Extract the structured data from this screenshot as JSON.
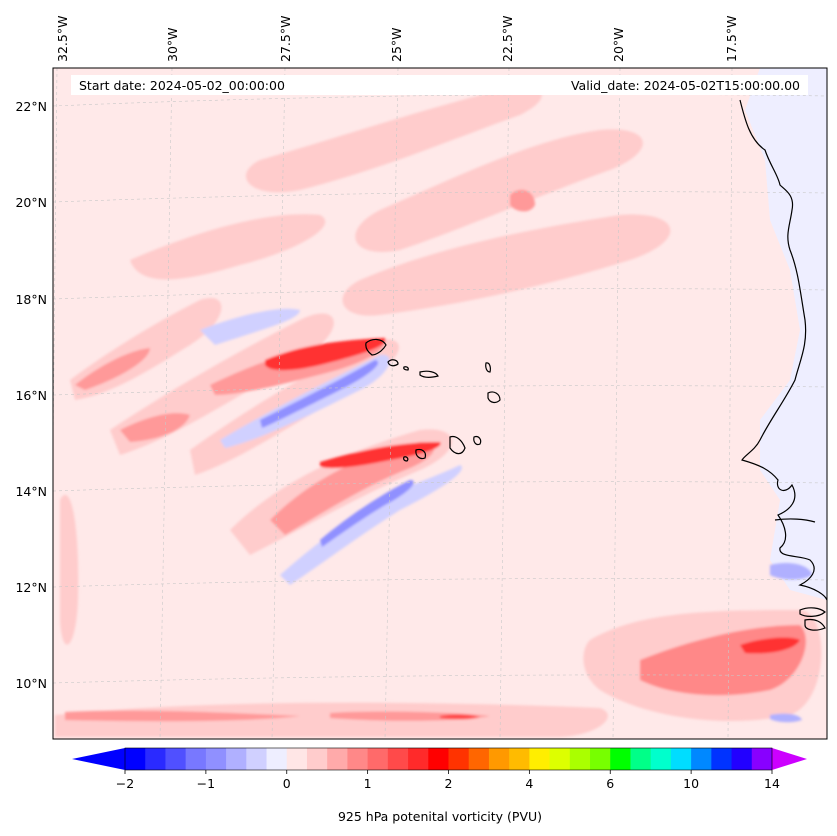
{
  "header": {
    "start_date": "Start date: 2024-05-02_00:00:00",
    "valid_date": "Valid_date: 2024-05-02T15:00:00.00"
  },
  "longitude_labels": [
    "32.5°W",
    "30°W",
    "27.5°W",
    "25°W",
    "22.5°W",
    "20°W",
    "17.5°W"
  ],
  "latitude_labels": [
    "22°N",
    "20°N",
    "18°N",
    "16°N",
    "14°N",
    "12°N",
    "10°N"
  ],
  "colorbar": {
    "title": "925 hPa potenital vorticity (PVU)",
    "tick_labels": [
      "−2",
      "−1",
      "0",
      "1",
      "2",
      "4",
      "6",
      "10",
      "14"
    ],
    "colors": [
      "#0000ff",
      "#2a2aff",
      "#5050ff",
      "#7878ff",
      "#9090ff",
      "#b0b0ff",
      "#d0d0ff",
      "#eeeeff",
      "#ffe6e6",
      "#ffcccc",
      "#ffaaaa",
      "#ff8888",
      "#ff6a6a",
      "#ff4a4a",
      "#ff2a2a",
      "#ff0000",
      "#ff3300",
      "#ff6600",
      "#ff9900",
      "#ffbb00",
      "#ffee00",
      "#ddff00",
      "#aaff00",
      "#77ff00",
      "#00ff00",
      "#00ff88",
      "#00ffcc",
      "#00ddff",
      "#0088ff",
      "#0033ff",
      "#2200ff",
      "#8800ff"
    ],
    "under_color": "#0000ff",
    "over_color": "#cc00ff"
  },
  "colors": {
    "background_field": "#ffe9e9",
    "coast": "#000000",
    "grid": "#c8c8c8"
  }
}
